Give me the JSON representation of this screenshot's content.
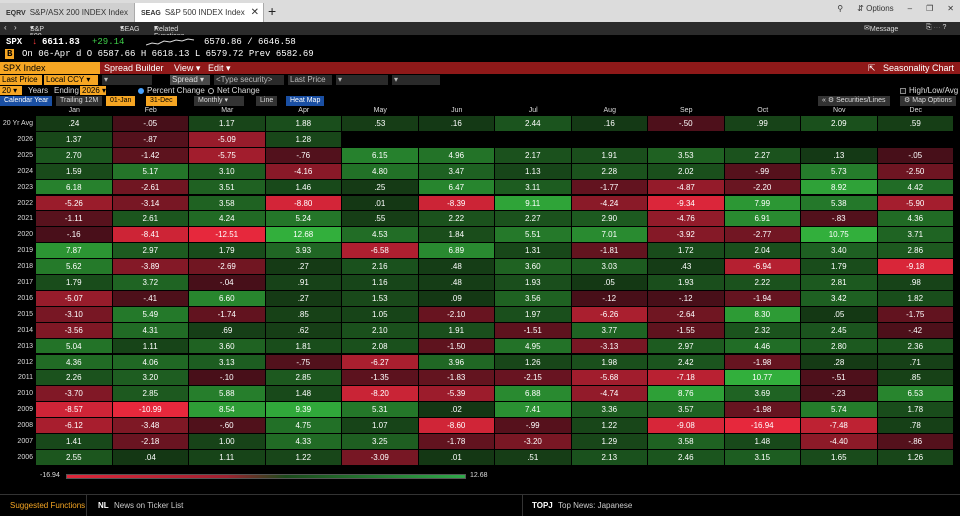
{
  "tabs": [
    {
      "code": "EQRV",
      "label": "S&P/ASX 200 INDEX Index"
    },
    {
      "code": "SEAG",
      "label": "S&P 500 INDEX Index"
    }
  ],
  "window": {
    "options_label": "Options"
  },
  "nav": {
    "security": "S&P 500 INDEX Index",
    "function": "SEAG",
    "related": "Related Functions Menu",
    "message": "Message"
  },
  "quote": {
    "ticker": "SPX",
    "arrow": "↓",
    "price": "6611.83",
    "change": "+29.14",
    "range": "6570.86 / 6646.58",
    "badge": "B",
    "line2": "On 06-Apr d O 6587.66 H 6618.13 L 6579.72 Prev 6582.69"
  },
  "titlebar": {
    "security": "SPX Index",
    "spread_builder": "Spread Builder",
    "view": "View",
    "edit": "Edit",
    "seasonality": "Seasonality Chart"
  },
  "controls": {
    "last_price": "Last Price",
    "local_ccy": "Local CCY",
    "spread": "Spread",
    "type_security": "<Type security>",
    "last_price2": "Last Price",
    "years": "20",
    "years_label": "Years",
    "ending_label": "Ending",
    "ending": "2026",
    "percent_change": "Percent Change",
    "net_change": "Net Change",
    "high_low_avg": "High/Low/Avg",
    "calendar_year": "Calendar Year",
    "trailing": "Trailing 12M",
    "from_date": "01-Jan",
    "to_date": "31-Dec",
    "monthly": "Monthly",
    "line": "Line",
    "heat_map": "Heat Map",
    "securities_lines": "Securities/Lines",
    "map_options": "Map Options"
  },
  "months": [
    "Jan",
    "Feb",
    "Mar",
    "Apr",
    "May",
    "Jun",
    "Jul",
    "Aug",
    "Sep",
    "Oct",
    "Nov",
    "Dec"
  ],
  "rows": [
    {
      "label": "20 Yr Avg",
      "values": [
        ".24",
        "-.05",
        "1.17",
        "1.88",
        ".53",
        ".16",
        "2.44",
        ".16",
        "-.50",
        ".99",
        "2.09",
        ".59"
      ]
    },
    {
      "label": "2026",
      "values": [
        "1.37",
        "-.87",
        "-5.09",
        "1.28",
        "",
        "",
        "",
        "",
        "",
        "",
        "",
        ""
      ]
    },
    {
      "label": "2025",
      "values": [
        "2.70",
        "-1.42",
        "-5.75",
        "-.76",
        "6.15",
        "4.96",
        "2.17",
        "1.91",
        "3.53",
        "2.27",
        ".13",
        "-.05"
      ]
    },
    {
      "label": "2024",
      "values": [
        "1.59",
        "5.17",
        "3.10",
        "-4.16",
        "4.80",
        "3.47",
        "1.13",
        "2.28",
        "2.02",
        "-.99",
        "5.73",
        "-2.50"
      ]
    },
    {
      "label": "2023",
      "values": [
        "6.18",
        "-2.61",
        "3.51",
        "1.46",
        ".25",
        "6.47",
        "3.11",
        "-1.77",
        "-4.87",
        "-2.20",
        "8.92",
        "4.42"
      ]
    },
    {
      "label": "2022",
      "values": [
        "-5.26",
        "-3.14",
        "3.58",
        "-8.80",
        ".01",
        "-8.39",
        "9.11",
        "-4.24",
        "-9.34",
        "7.99",
        "5.38",
        "-5.90"
      ]
    },
    {
      "label": "2021",
      "values": [
        "-1.11",
        "2.61",
        "4.24",
        "5.24",
        ".55",
        "2.22",
        "2.27",
        "2.90",
        "-4.76",
        "6.91",
        "-.83",
        "4.36"
      ]
    },
    {
      "label": "2020",
      "values": [
        "-.16",
        "-8.41",
        "-12.51",
        "12.68",
        "4.53",
        "1.84",
        "5.51",
        "7.01",
        "-3.92",
        "-2.77",
        "10.75",
        "3.71"
      ]
    },
    {
      "label": "2019",
      "values": [
        "7.87",
        "2.97",
        "1.79",
        "3.93",
        "-6.58",
        "6.89",
        "1.31",
        "-1.81",
        "1.72",
        "2.04",
        "3.40",
        "2.86"
      ]
    },
    {
      "label": "2018",
      "values": [
        "5.62",
        "-3.89",
        "-2.69",
        ".27",
        "2.16",
        ".48",
        "3.60",
        "3.03",
        ".43",
        "-6.94",
        "1.79",
        "-9.18"
      ]
    },
    {
      "label": "2017",
      "values": [
        "1.79",
        "3.72",
        "-.04",
        ".91",
        "1.16",
        ".48",
        "1.93",
        ".05",
        "1.93",
        "2.22",
        "2.81",
        ".98"
      ]
    },
    {
      "label": "2016",
      "values": [
        "-5.07",
        "-.41",
        "6.60",
        ".27",
        "1.53",
        ".09",
        "3.56",
        "-.12",
        "-.12",
        "-1.94",
        "3.42",
        "1.82"
      ]
    },
    {
      "label": "2015",
      "values": [
        "-3.10",
        "5.49",
        "-1.74",
        ".85",
        "1.05",
        "-2.10",
        "1.97",
        "-6.26",
        "-2.64",
        "8.30",
        ".05",
        "-1.75"
      ]
    },
    {
      "label": "2014",
      "values": [
        "-3.56",
        "4.31",
        ".69",
        ".62",
        "2.10",
        "1.91",
        "-1.51",
        "3.77",
        "-1.55",
        "2.32",
        "2.45",
        "-.42"
      ]
    },
    {
      "label": "2013",
      "values": [
        "5.04",
        "1.11",
        "3.60",
        "1.81",
        "2.08",
        "-1.50",
        "4.95",
        "-3.13",
        "2.97",
        "4.46",
        "2.80",
        "2.36"
      ]
    },
    {
      "label": "2012",
      "values": [
        "4.36",
        "4.06",
        "3.13",
        "-.75",
        "-6.27",
        "3.96",
        "1.26",
        "1.98",
        "2.42",
        "-1.98",
        ".28",
        ".71"
      ]
    },
    {
      "label": "2011",
      "values": [
        "2.26",
        "3.20",
        "-.10",
        "2.85",
        "-1.35",
        "-1.83",
        "-2.15",
        "-5.68",
        "-7.18",
        "10.77",
        "-.51",
        ".85"
      ]
    },
    {
      "label": "2010",
      "values": [
        "-3.70",
        "2.85",
        "5.88",
        "1.48",
        "-8.20",
        "-5.39",
        "6.88",
        "-4.74",
        "8.76",
        "3.69",
        "-.23",
        "6.53"
      ]
    },
    {
      "label": "2009",
      "values": [
        "-8.57",
        "-10.99",
        "8.54",
        "9.39",
        "5.31",
        ".02",
        "7.41",
        "3.36",
        "3.57",
        "-1.98",
        "5.74",
        "1.78"
      ]
    },
    {
      "label": "2008",
      "values": [
        "-6.12",
        "-3.48",
        "-.60",
        "4.75",
        "1.07",
        "-8.60",
        "-.99",
        "1.22",
        "-9.08",
        "-16.94",
        "-7.48",
        ".78"
      ]
    },
    {
      "label": "2007",
      "values": [
        "1.41",
        "-2.18",
        "1.00",
        "4.33",
        "3.25",
        "-1.78",
        "-3.20",
        "1.29",
        "3.58",
        "1.48",
        "-4.40",
        "-.86"
      ]
    },
    {
      "label": "2006",
      "values": [
        "2.55",
        ".04",
        "1.11",
        "1.22",
        "-3.09",
        ".01",
        ".51",
        "2.13",
        "2.46",
        "3.15",
        "1.65",
        "1.26"
      ]
    }
  ],
  "legend": {
    "min": "-16.94",
    "max": "12.68"
  },
  "bottom": {
    "suggested": "Suggested Functions",
    "nl_code": "NL",
    "nl_label": "News on Ticker List",
    "topj_code": "TOPJ",
    "topj_label": "Top News: Japanese"
  },
  "colors": {
    "accent": "#f6a623",
    "title_bar": "#8f1919",
    "positive": "#2fa84a",
    "negative": "#d02a3a"
  }
}
